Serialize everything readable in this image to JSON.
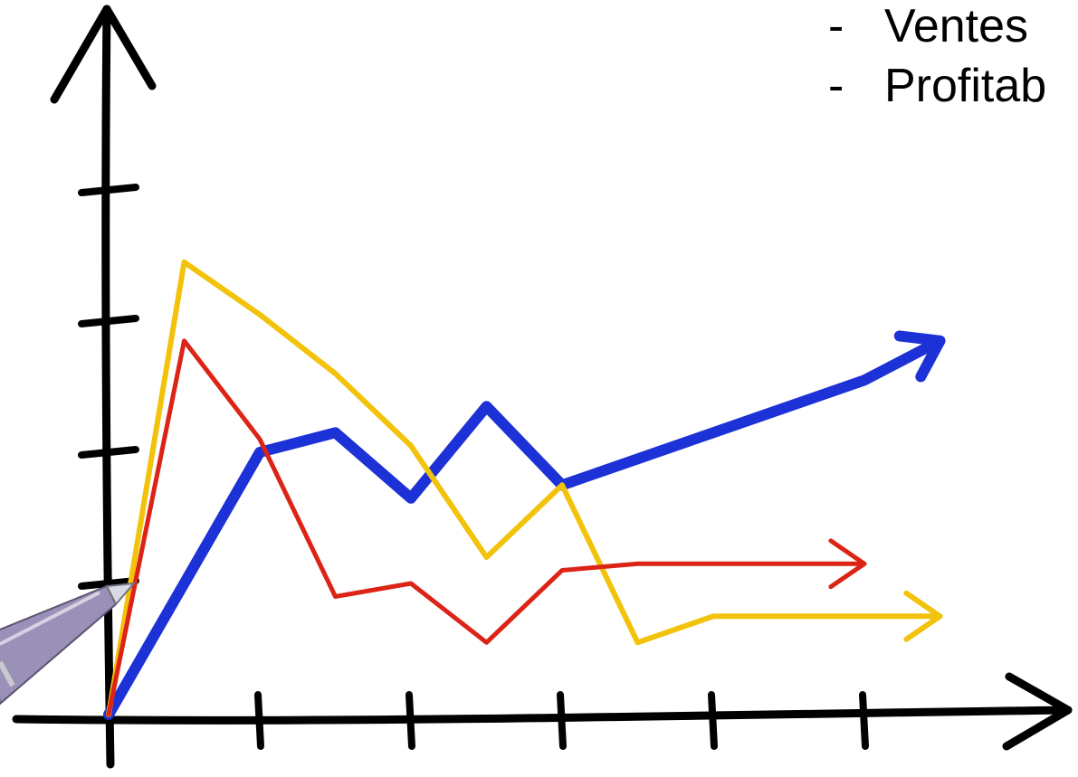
{
  "bullets": [
    {
      "dash": "-",
      "text": "Ventes"
    },
    {
      "dash": "-",
      "text": "Profitab"
    }
  ],
  "chart_data": {
    "type": "line",
    "title": "",
    "xlabel": "",
    "ylabel": "",
    "x": [
      0,
      0.5,
      1,
      1.5,
      2,
      2.5,
      3,
      3.5,
      4,
      4.5,
      5,
      5.5
    ],
    "xlim": [
      0,
      5.5
    ],
    "ylim": [
      0,
      4.5
    ],
    "x_ticks": [
      1,
      2,
      3,
      4,
      5
    ],
    "y_ticks": [
      1,
      2,
      3,
      4
    ],
    "grid": false,
    "style": "hand-drawn",
    "series": [
      {
        "color": "#1c31d6",
        "values": [
          0,
          1.0,
          2.0,
          2.15,
          1.65,
          2.35,
          1.75,
          1.95,
          2.15,
          2.35,
          2.55,
          2.85
        ],
        "arrow": true
      },
      {
        "color": "#f2c30a",
        "values": [
          0,
          3.45,
          3.05,
          2.6,
          2.05,
          1.2,
          1.75,
          0.55,
          0.75,
          0.75,
          0.75,
          0.75
        ],
        "arrow": true
      },
      {
        "color": "#dc2416",
        "values": [
          0,
          2.85,
          2.1,
          0.9,
          1.0,
          0.55,
          1.1,
          1.15,
          1.15,
          1.15,
          1.15,
          null
        ],
        "arrow": true
      }
    ]
  },
  "colors": {
    "axis": "#000000",
    "pen_body": "#9a90b8",
    "pen_tip": "#d9d9e3"
  }
}
